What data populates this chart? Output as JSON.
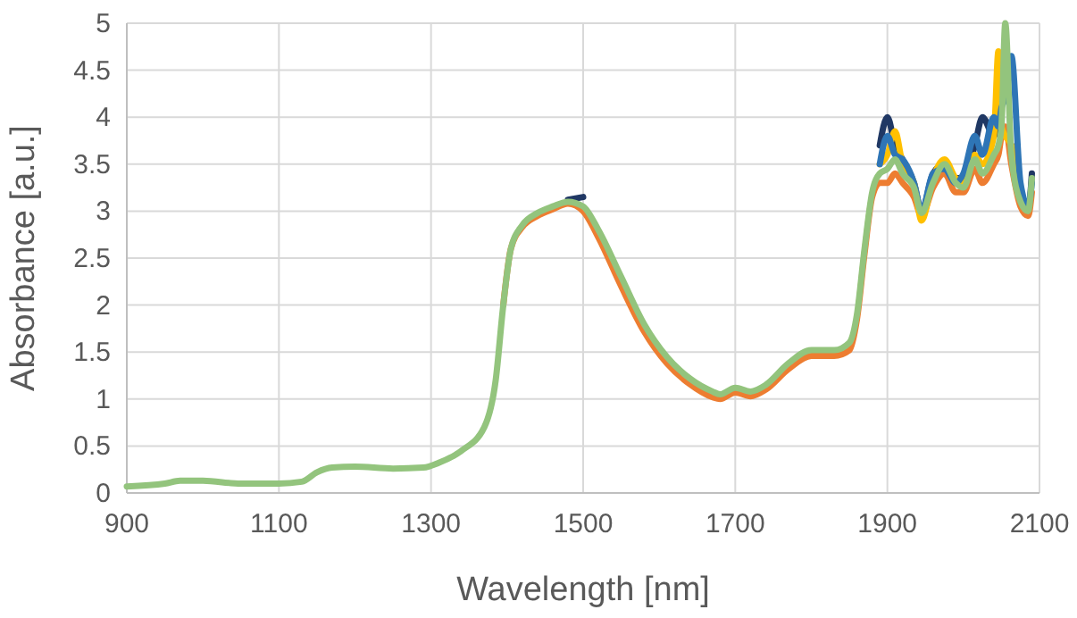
{
  "chart_data": {
    "type": "line",
    "xlabel": "Wavelength [nm]",
    "ylabel": "Absorbance [a.u.]",
    "x": [
      900,
      950,
      970,
      1000,
      1050,
      1100,
      1130,
      1150,
      1170,
      1200,
      1250,
      1290,
      1310,
      1340,
      1370,
      1385,
      1395,
      1405,
      1420,
      1440,
      1460,
      1480,
      1500,
      1520,
      1550,
      1580,
      1610,
      1640,
      1670,
      1680,
      1700,
      1720,
      1740,
      1770,
      1800,
      1830,
      1850,
      1860,
      1870,
      1880,
      1890,
      1900,
      1910,
      1920,
      1935,
      1945,
      1960,
      1975,
      1990,
      2000,
      2015,
      2025,
      2040,
      2046,
      2050,
      2055,
      2063,
      2075,
      2085,
      2090
    ],
    "series": [
      {
        "color": "#203864",
        "values": [
          null,
          null,
          null,
          null,
          null,
          null,
          null,
          null,
          null,
          null,
          null,
          null,
          null,
          null,
          null,
          null,
          null,
          null,
          null,
          null,
          null,
          3.12,
          3.15,
          null,
          null,
          null,
          null,
          null,
          null,
          null,
          null,
          null,
          null,
          null,
          null,
          null,
          null,
          null,
          null,
          null,
          3.7,
          4.0,
          3.7,
          3.55,
          3.3,
          3.0,
          3.4,
          3.5,
          3.35,
          3.35,
          3.7,
          4.0,
          3.8,
          3.9,
          3.8,
          3.8,
          3.7,
          3.2,
          3.0,
          3.4
        ]
      },
      {
        "color": "#ed7d31",
        "values": [
          null,
          null,
          null,
          null,
          null,
          null,
          null,
          null,
          null,
          null,
          null,
          null,
          null,
          null,
          null,
          null,
          2.0,
          2.6,
          2.83,
          2.95,
          3.02,
          3.08,
          3.0,
          2.72,
          2.2,
          1.72,
          1.38,
          1.16,
          1.02,
          1.0,
          1.07,
          1.03,
          1.1,
          1.32,
          1.46,
          1.46,
          1.52,
          1.85,
          2.55,
          3.15,
          3.3,
          3.3,
          3.4,
          3.3,
          3.15,
          2.95,
          3.25,
          3.4,
          3.2,
          3.2,
          3.45,
          3.3,
          3.5,
          3.6,
          3.8,
          3.9,
          3.5,
          3.05,
          2.95,
          3.2
        ]
      },
      {
        "color": "#ffc000",
        "values": [
          null,
          null,
          null,
          null,
          null,
          null,
          null,
          null,
          null,
          null,
          null,
          null,
          null,
          null,
          null,
          null,
          null,
          null,
          null,
          null,
          null,
          null,
          null,
          null,
          null,
          null,
          null,
          null,
          null,
          null,
          null,
          null,
          null,
          null,
          null,
          null,
          null,
          null,
          null,
          null,
          3.5,
          3.6,
          3.85,
          3.5,
          3.3,
          2.9,
          3.35,
          3.55,
          3.35,
          3.3,
          3.6,
          3.5,
          3.8,
          4.7,
          3.9,
          3.8,
          3.7,
          3.15,
          null,
          null
        ]
      },
      {
        "color": "#2e75b6",
        "values": [
          null,
          null,
          null,
          null,
          null,
          null,
          null,
          null,
          null,
          null,
          null,
          null,
          null,
          null,
          null,
          null,
          null,
          null,
          null,
          null,
          null,
          null,
          null,
          null,
          null,
          null,
          null,
          null,
          null,
          null,
          null,
          null,
          null,
          null,
          null,
          null,
          null,
          null,
          null,
          null,
          3.5,
          3.8,
          3.6,
          3.55,
          3.3,
          3.0,
          3.4,
          3.45,
          3.3,
          3.4,
          3.8,
          3.6,
          4.0,
          3.9,
          4.1,
          4.2,
          4.65,
          3.3,
          3.05,
          3.3
        ]
      },
      {
        "color": "#93c47d",
        "values": [
          0.07,
          0.1,
          0.13,
          0.13,
          0.1,
          0.1,
          0.12,
          0.22,
          0.27,
          0.28,
          0.26,
          0.27,
          0.32,
          0.45,
          0.7,
          1.2,
          2.0,
          2.6,
          2.85,
          2.98,
          3.05,
          3.1,
          3.05,
          2.8,
          2.3,
          1.8,
          1.45,
          1.22,
          1.08,
          1.05,
          1.12,
          1.08,
          1.15,
          1.38,
          1.52,
          1.52,
          1.6,
          1.9,
          2.6,
          3.2,
          3.4,
          3.45,
          3.55,
          3.4,
          3.25,
          2.98,
          3.3,
          3.5,
          3.3,
          3.25,
          3.55,
          3.4,
          3.6,
          3.7,
          3.9,
          5.0,
          3.6,
          3.1,
          3.0,
          3.35
        ]
      }
    ],
    "xlim": [
      900,
      2100
    ],
    "xticks": [
      900,
      1100,
      1300,
      1500,
      1700,
      1900,
      2100
    ],
    "ylim": [
      0,
      5
    ],
    "yticks": [
      0,
      0.5,
      1,
      1.5,
      2,
      2.5,
      3,
      3.5,
      4,
      4.5,
      5
    ],
    "grid": true
  }
}
